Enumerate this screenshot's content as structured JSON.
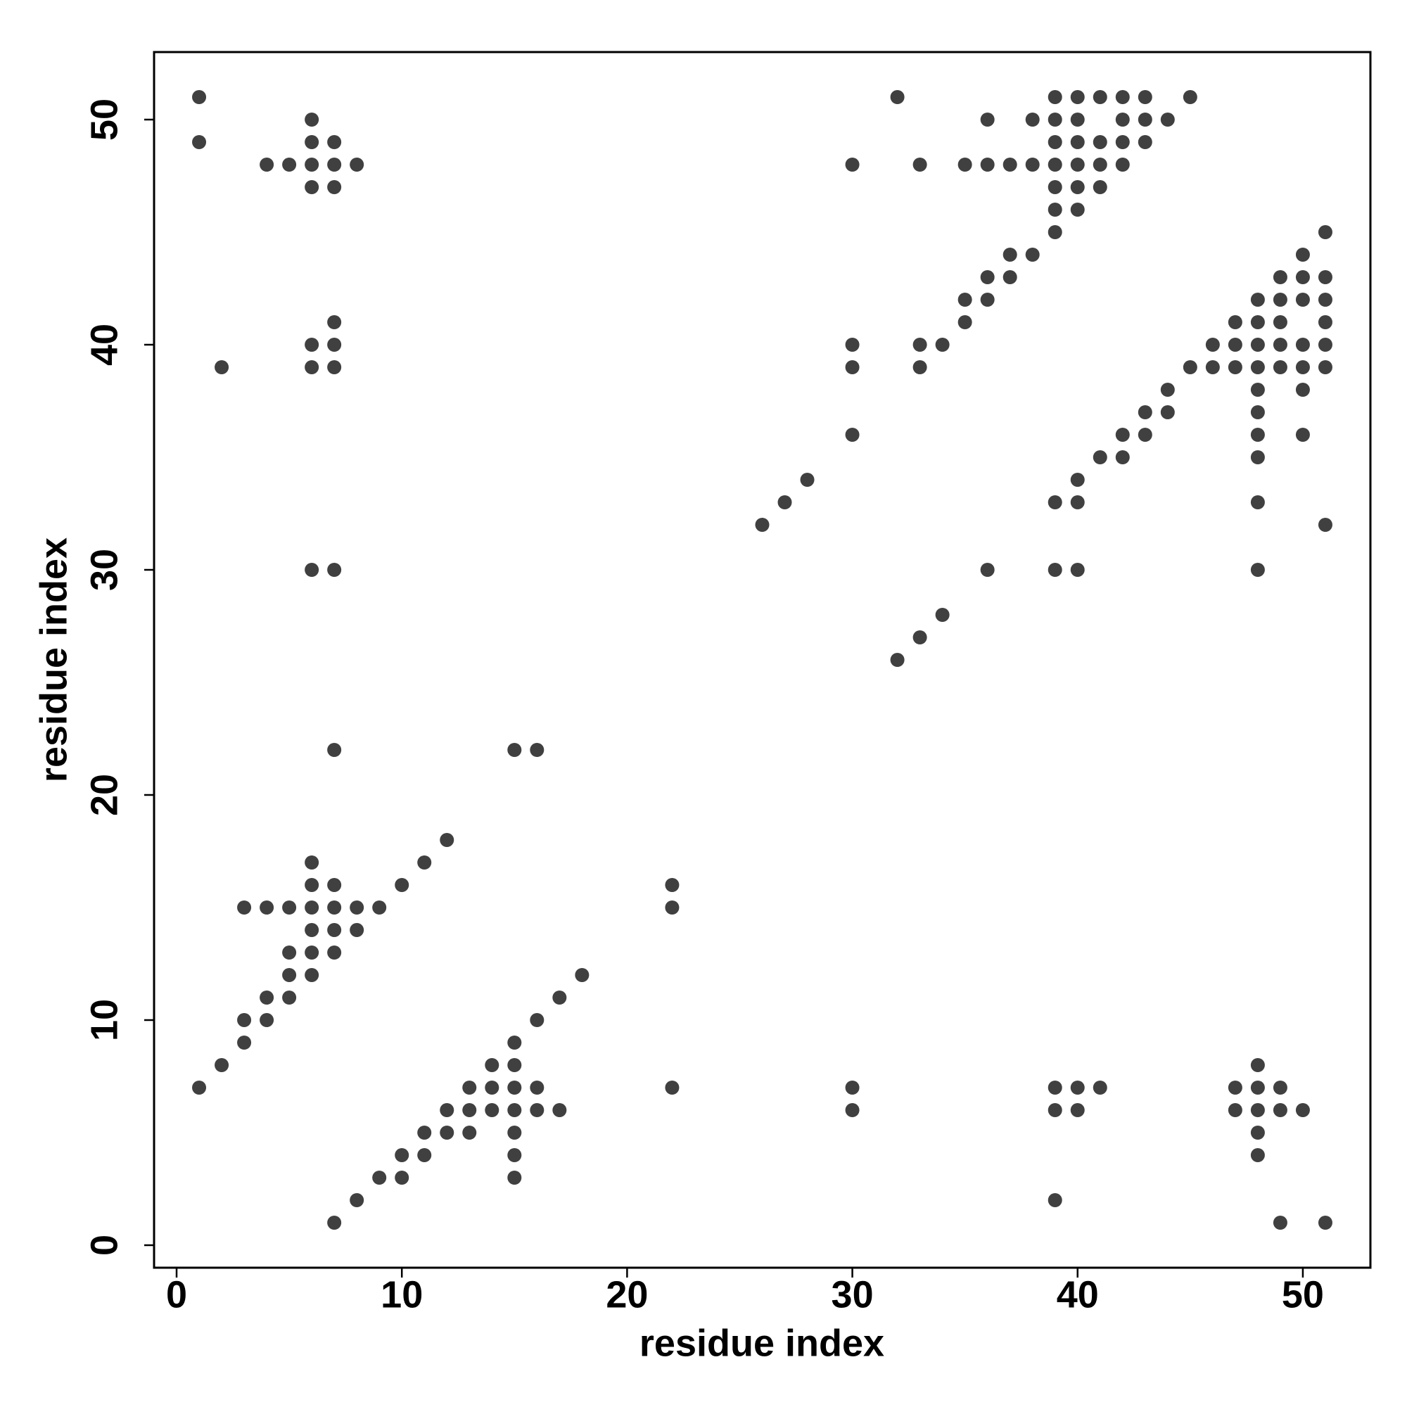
{
  "chart_data": {
    "type": "scatter",
    "x_label": "residue index",
    "y_label": "residue index",
    "color": "rgba(0,0,0,0.75)",
    "xlim": [
      -1,
      53
    ],
    "ylim": [
      -1,
      53
    ],
    "xticks": [
      0,
      10,
      20,
      30,
      40,
      50
    ],
    "yticks": [
      0,
      10,
      20,
      30,
      40,
      50
    ],
    "x": [
      1,
      1,
      6,
      6,
      7,
      4,
      5,
      6,
      7,
      8,
      6,
      7,
      7,
      6,
      7,
      2,
      6,
      7,
      6,
      7,
      7,
      15,
      16,
      6,
      6,
      7,
      10,
      11,
      12,
      3,
      4,
      5,
      6,
      7,
      8,
      9,
      6,
      7,
      8,
      5,
      6,
      7,
      5,
      6,
      4,
      5,
      3,
      4,
      3,
      2,
      1,
      22,
      22,
      18,
      17,
      16,
      15,
      14,
      15,
      13,
      14,
      15,
      16,
      22,
      12,
      13,
      14,
      15,
      16,
      17,
      11,
      12,
      13,
      15,
      10,
      11,
      15,
      9,
      10,
      15,
      8,
      7,
      30,
      30,
      39,
      40,
      41,
      39,
      40,
      39,
      47,
      48,
      49,
      47,
      48,
      49,
      50,
      48,
      48,
      48,
      49,
      51,
      32,
      39,
      40,
      41,
      42,
      43,
      45,
      36,
      38,
      39,
      40,
      42,
      43,
      44,
      39,
      40,
      41,
      42,
      43,
      30,
      33,
      35,
      36,
      37,
      38,
      39,
      40,
      41,
      42,
      39,
      40,
      41,
      39,
      40,
      39,
      37,
      38,
      36,
      37,
      35,
      36,
      35,
      30,
      33,
      34,
      30,
      33,
      30,
      28,
      27,
      26,
      36,
      39,
      40,
      34,
      33,
      32,
      51,
      50,
      49,
      50,
      51,
      48,
      49,
      50,
      51,
      47,
      48,
      49,
      51,
      46,
      47,
      48,
      49,
      50,
      51,
      45,
      46,
      47,
      48,
      49,
      50,
      51,
      44,
      48,
      50,
      43,
      44,
      48,
      42,
      43,
      48,
      50,
      41,
      42,
      48,
      40,
      39,
      40,
      48,
      51,
      48
    ],
    "y": [
      51,
      49,
      50,
      49,
      49,
      48,
      48,
      48,
      48,
      48,
      47,
      47,
      41,
      40,
      40,
      39,
      39,
      39,
      30,
      30,
      22,
      22,
      22,
      17,
      16,
      16,
      16,
      17,
      18,
      15,
      15,
      15,
      15,
      15,
      15,
      15,
      14,
      14,
      14,
      13,
      13,
      13,
      12,
      12,
      11,
      11,
      10,
      10,
      9,
      8,
      7,
      16,
      15,
      12,
      11,
      10,
      9,
      8,
      8,
      7,
      7,
      7,
      7,
      7,
      6,
      6,
      6,
      6,
      6,
      6,
      5,
      5,
      5,
      5,
      4,
      4,
      4,
      3,
      3,
      3,
      2,
      1,
      7,
      6,
      7,
      7,
      7,
      6,
      6,
      2,
      7,
      7,
      7,
      6,
      6,
      6,
      6,
      8,
      5,
      4,
      1,
      1,
      51,
      51,
      51,
      51,
      51,
      51,
      51,
      50,
      50,
      50,
      50,
      50,
      50,
      50,
      49,
      49,
      49,
      49,
      49,
      48,
      48,
      48,
      48,
      48,
      48,
      48,
      48,
      48,
      48,
      47,
      47,
      47,
      46,
      46,
      45,
      44,
      44,
      43,
      43,
      42,
      42,
      41,
      40,
      40,
      40,
      39,
      39,
      36,
      34,
      33,
      32,
      30,
      30,
      30,
      28,
      27,
      26,
      45,
      44,
      43,
      43,
      43,
      42,
      42,
      42,
      42,
      41,
      41,
      41,
      41,
      40,
      40,
      40,
      40,
      40,
      40,
      39,
      39,
      39,
      39,
      39,
      39,
      39,
      38,
      38,
      38,
      37,
      37,
      37,
      36,
      36,
      36,
      36,
      35,
      35,
      35,
      34,
      33,
      33,
      33,
      32,
      30
    ]
  }
}
